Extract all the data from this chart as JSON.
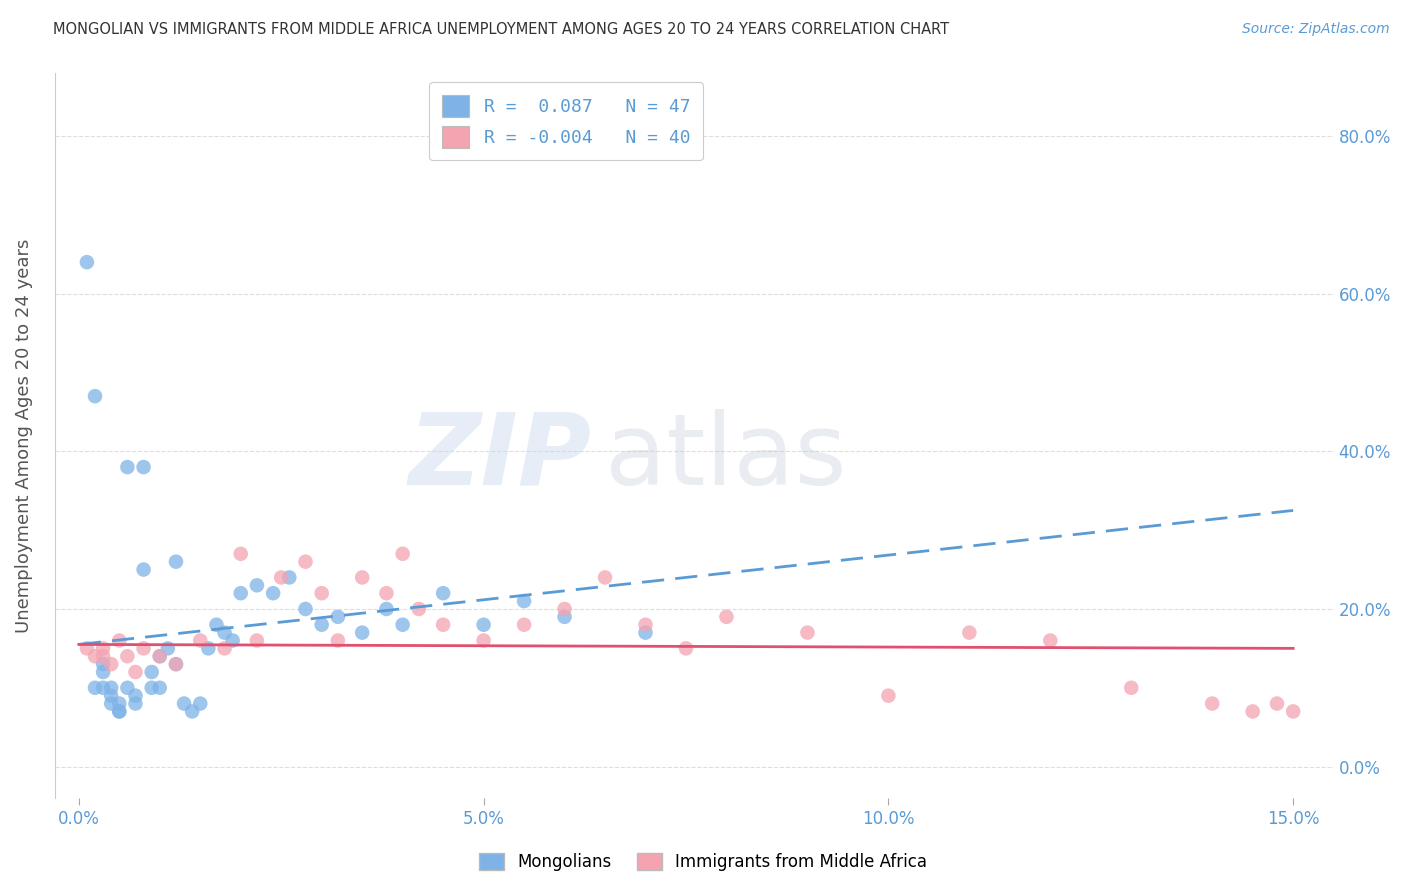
{
  "title": "MONGOLIAN VS IMMIGRANTS FROM MIDDLE AFRICA UNEMPLOYMENT AMONG AGES 20 TO 24 YEARS CORRELATION CHART",
  "source": "Source: ZipAtlas.com",
  "ylabel": "Unemployment Among Ages 20 to 24 years",
  "xlim": [
    -0.003,
    0.155
  ],
  "ylim": [
    -0.04,
    0.88
  ],
  "xticks": [
    0.0,
    0.05,
    0.1,
    0.15
  ],
  "xticklabels": [
    "0.0%",
    "5.0%",
    "10.0%",
    "15.0%"
  ],
  "yticks_right": [
    0.0,
    0.2,
    0.4,
    0.6,
    0.8
  ],
  "yticklabels_right": [
    "0.0%",
    "20.0%",
    "40.0%",
    "60.0%",
    "80.0%"
  ],
  "mongolian_color": "#7EB3E8",
  "immigrant_color": "#F4A3B0",
  "mongolian_line_color": "#5B9BD5",
  "immigrant_line_color": "#E05070",
  "mongolian_R": 0.087,
  "mongolian_N": 47,
  "immigrant_R": -0.004,
  "immigrant_N": 40,
  "mon_scatter_x": [
    0.001,
    0.002,
    0.002,
    0.003,
    0.003,
    0.003,
    0.004,
    0.004,
    0.004,
    0.005,
    0.005,
    0.005,
    0.006,
    0.006,
    0.007,
    0.007,
    0.008,
    0.008,
    0.009,
    0.009,
    0.01,
    0.01,
    0.011,
    0.012,
    0.012,
    0.013,
    0.014,
    0.015,
    0.016,
    0.017,
    0.018,
    0.019,
    0.02,
    0.022,
    0.024,
    0.026,
    0.028,
    0.03,
    0.032,
    0.035,
    0.038,
    0.04,
    0.045,
    0.05,
    0.055,
    0.06,
    0.07
  ],
  "mon_scatter_y": [
    0.64,
    0.47,
    0.1,
    0.13,
    0.12,
    0.1,
    0.08,
    0.1,
    0.09,
    0.07,
    0.08,
    0.07,
    0.38,
    0.1,
    0.08,
    0.09,
    0.38,
    0.25,
    0.12,
    0.1,
    0.14,
    0.1,
    0.15,
    0.26,
    0.13,
    0.08,
    0.07,
    0.08,
    0.15,
    0.18,
    0.17,
    0.16,
    0.22,
    0.23,
    0.22,
    0.24,
    0.2,
    0.18,
    0.19,
    0.17,
    0.2,
    0.18,
    0.22,
    0.18,
    0.21,
    0.19,
    0.17
  ],
  "imm_scatter_x": [
    0.001,
    0.002,
    0.003,
    0.004,
    0.005,
    0.006,
    0.007,
    0.008,
    0.01,
    0.012,
    0.015,
    0.018,
    0.02,
    0.022,
    0.025,
    0.028,
    0.03,
    0.032,
    0.035,
    0.038,
    0.04,
    0.042,
    0.045,
    0.05,
    0.055,
    0.06,
    0.065,
    0.07,
    0.075,
    0.08,
    0.09,
    0.1,
    0.11,
    0.12,
    0.13,
    0.14,
    0.145,
    0.148,
    0.15,
    0.003
  ],
  "imm_scatter_y": [
    0.15,
    0.14,
    0.15,
    0.13,
    0.16,
    0.14,
    0.12,
    0.15,
    0.14,
    0.13,
    0.16,
    0.15,
    0.27,
    0.16,
    0.24,
    0.26,
    0.22,
    0.16,
    0.24,
    0.22,
    0.27,
    0.2,
    0.18,
    0.16,
    0.18,
    0.2,
    0.24,
    0.18,
    0.15,
    0.19,
    0.17,
    0.09,
    0.17,
    0.16,
    0.1,
    0.08,
    0.07,
    0.08,
    0.07,
    0.14
  ],
  "mon_trend_x": [
    0.0,
    0.15
  ],
  "mon_trend_y": [
    0.155,
    0.325
  ],
  "imm_trend_x": [
    0.0,
    0.15
  ],
  "imm_trend_y": [
    0.155,
    0.15
  ],
  "background_color": "#FFFFFF",
  "grid_color": "#DDDDDD",
  "title_color": "#333333",
  "source_color": "#5B9BD5",
  "tick_color": "#5B9BD5",
  "ylabel_color": "#555555"
}
